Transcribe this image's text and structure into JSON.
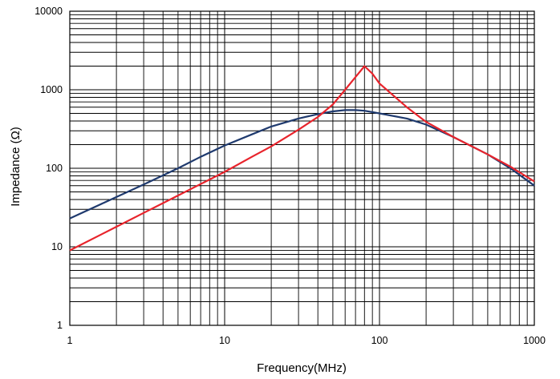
{
  "chart_data": {
    "type": "line",
    "xlabel": "Frequency(MHz)",
    "ylabel": "Impedance (Ω)",
    "x_scale": "log",
    "y_scale": "log",
    "xlim": [
      1,
      1000
    ],
    "ylim": [
      1,
      10000
    ],
    "x_tick_labels": [
      "1",
      "10",
      "100",
      "1000"
    ],
    "y_tick_labels": [
      "1",
      "10",
      "100",
      "1000",
      "10000"
    ],
    "grid": true,
    "series": [
      {
        "color": "#1f3a6e",
        "x": [
          1,
          2,
          3,
          5,
          7,
          10,
          15,
          20,
          30,
          40,
          50,
          60,
          70,
          80,
          100,
          150,
          200,
          300,
          500,
          700,
          1000
        ],
        "y": [
          23,
          43,
          62,
          100,
          140,
          195,
          270,
          340,
          430,
          490,
          530,
          550,
          550,
          540,
          500,
          430,
          360,
          250,
          150,
          100,
          60
        ]
      },
      {
        "color": "#e8242c",
        "x": [
          1,
          2,
          3,
          5,
          7,
          10,
          15,
          20,
          30,
          40,
          50,
          60,
          70,
          80,
          90,
          100,
          150,
          200,
          300,
          500,
          700,
          1000
        ],
        "y": [
          9,
          18,
          27,
          45,
          63,
          90,
          140,
          190,
          310,
          450,
          650,
          1000,
          1450,
          2000,
          1600,
          1200,
          600,
          390,
          250,
          150,
          105,
          68
        ]
      }
    ]
  }
}
